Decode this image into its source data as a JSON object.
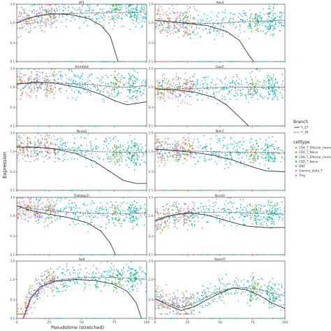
{
  "figure": {
    "xlabel": "Pseudotime (stretched)",
    "ylabel": "Expression",
    "legend_position": "right",
    "legend_branch_title": "Branch",
    "legend_celltype_title": "celltype"
  },
  "chart_data": {
    "type": "scatter",
    "layout": "faceted 5x2",
    "xlim": [
      0,
      100
    ],
    "x_ticks": [
      "0",
      "25",
      "50",
      "75",
      "100"
    ],
    "y_scale": "log10",
    "ylim": [
      0.1,
      3
    ],
    "y_ticks": [
      {
        "value": 0.1,
        "label": "0.1"
      },
      {
        "value": 0.3,
        "label": "0.3"
      },
      {
        "value": 1,
        "label": "1.0"
      },
      {
        "value": 3,
        "label": "3.0"
      }
    ],
    "branches": [
      {
        "name": "Y_27",
        "line": "solid",
        "color": "#333333"
      },
      {
        "name": "Y_39",
        "line": "dotted",
        "color": "#333333"
      }
    ],
    "celltypes": [
      {
        "name": "CD4_T_Effector_memory",
        "color": "#F8766D"
      },
      {
        "name": "CD4_T_Naive",
        "color": "#B79F00"
      },
      {
        "name": "CD8_T_Effector_memory",
        "color": "#00BA38"
      },
      {
        "name": "CD8_T_Naive",
        "color": "#00BFC4"
      },
      {
        "name": "DNT",
        "color": "#619CFF"
      },
      {
        "name": "Gamma_delta_T",
        "color": "#F564E3"
      },
      {
        "name": "Treg",
        "color": "#E76BF3"
      }
    ],
    "panels": [
      {
        "gene": "Jtf1",
        "trend_Y_27": [
          [
            0,
            1.0
          ],
          [
            10,
            1.35
          ],
          [
            25,
            1.7
          ],
          [
            40,
            1.65
          ],
          [
            55,
            1.3
          ],
          [
            65,
            0.85
          ],
          [
            72,
            0.45
          ],
          [
            78,
            0.1
          ]
        ],
        "trend_Y_39": [
          [
            0,
            1.0
          ],
          [
            15,
            1.5
          ],
          [
            30,
            1.7
          ],
          [
            50,
            1.75
          ],
          [
            70,
            1.8
          ],
          [
            85,
            1.85
          ],
          [
            100,
            1.9
          ]
        ]
      },
      {
        "gene": "Aes3",
        "trend_Y_27": [
          [
            0,
            1.15
          ],
          [
            20,
            1.0
          ],
          [
            40,
            0.85
          ],
          [
            55,
            0.6
          ],
          [
            65,
            0.35
          ],
          [
            72,
            0.15
          ],
          [
            76,
            0.1
          ]
        ],
        "trend_Y_39": [
          [
            0,
            1.15
          ],
          [
            20,
            1.0
          ],
          [
            45,
            0.95
          ],
          [
            65,
            1.05
          ],
          [
            85,
            1.1
          ],
          [
            100,
            1.15
          ]
        ]
      },
      {
        "gene": "Arhh6A4",
        "trend_Y_27": [
          [
            0,
            1.2
          ],
          [
            15,
            1.35
          ],
          [
            30,
            1.25
          ],
          [
            50,
            0.95
          ],
          [
            65,
            0.65
          ],
          [
            75,
            0.45
          ],
          [
            85,
            0.35
          ],
          [
            100,
            0.42
          ]
        ],
        "trend_Y_39": [
          [
            0,
            1.2
          ],
          [
            20,
            1.3
          ],
          [
            40,
            1.25
          ],
          [
            60,
            1.15
          ],
          [
            75,
            1.0
          ],
          [
            88,
            1.0
          ],
          [
            100,
            1.1
          ]
        ]
      },
      {
        "gene": "Gas5",
        "trend_Y_27": [
          [
            0,
            0.9
          ],
          [
            15,
            0.85
          ],
          [
            30,
            0.75
          ],
          [
            45,
            0.55
          ],
          [
            55,
            0.35
          ],
          [
            65,
            0.17
          ],
          [
            72,
            0.1
          ]
        ],
        "trend_Y_39": [
          [
            0,
            0.9
          ],
          [
            20,
            0.9
          ],
          [
            40,
            0.95
          ],
          [
            60,
            1.0
          ],
          [
            80,
            1.0
          ],
          [
            100,
            1.0
          ]
        ]
      },
      {
        "gene": "Ncoa2",
        "trend_Y_27": [
          [
            0,
            1.3
          ],
          [
            15,
            1.3
          ],
          [
            30,
            1.15
          ],
          [
            45,
            0.9
          ],
          [
            60,
            0.55
          ],
          [
            72,
            0.3
          ],
          [
            82,
            0.18
          ],
          [
            92,
            0.15
          ],
          [
            100,
            0.15
          ]
        ],
        "trend_Y_39": [
          [
            0,
            1.3
          ],
          [
            20,
            1.25
          ],
          [
            40,
            1.1
          ],
          [
            60,
            1.0
          ],
          [
            80,
            0.95
          ],
          [
            100,
            0.95
          ]
        ]
      },
      {
        "gene": "Nsh7",
        "trend_Y_27": [
          [
            0,
            1.15
          ],
          [
            15,
            1.05
          ],
          [
            30,
            0.95
          ],
          [
            45,
            0.8
          ],
          [
            60,
            0.6
          ],
          [
            75,
            0.4
          ],
          [
            85,
            0.32
          ],
          [
            100,
            0.3
          ]
        ],
        "trend_Y_39": [
          [
            0,
            1.15
          ],
          [
            20,
            1.05
          ],
          [
            40,
            1.0
          ],
          [
            60,
            0.95
          ],
          [
            80,
            0.95
          ],
          [
            100,
            0.9
          ]
        ]
      },
      {
        "gene": "Rabgap1l",
        "trend_Y_27": [
          [
            0,
            1.8
          ],
          [
            10,
            1.4
          ],
          [
            25,
            1.1
          ],
          [
            40,
            0.9
          ],
          [
            55,
            0.65
          ],
          [
            65,
            0.4
          ],
          [
            72,
            0.2
          ],
          [
            76,
            0.1
          ]
        ],
        "trend_Y_39": [
          [
            0,
            1.8
          ],
          [
            15,
            1.5
          ],
          [
            30,
            1.3
          ],
          [
            50,
            1.2
          ],
          [
            70,
            1.15
          ],
          [
            85,
            1.15
          ],
          [
            100,
            1.2
          ]
        ]
      },
      {
        "gene": "Bcsd3",
        "trend_Y_27": [
          [
            0,
            0.75
          ],
          [
            10,
            1.0
          ],
          [
            25,
            1.2
          ],
          [
            40,
            1.05
          ],
          [
            55,
            0.75
          ],
          [
            70,
            0.55
          ],
          [
            85,
            0.5
          ],
          [
            100,
            0.5
          ]
        ],
        "trend_Y_39": [
          [
            0,
            0.75
          ],
          [
            15,
            1.05
          ],
          [
            30,
            1.2
          ],
          [
            50,
            1.25
          ],
          [
            70,
            1.2
          ],
          [
            85,
            1.15
          ],
          [
            100,
            1.1
          ]
        ]
      },
      {
        "gene": "Sell",
        "trend_Y_27": [
          [
            5,
            0.1
          ],
          [
            10,
            0.3
          ],
          [
            18,
            0.65
          ],
          [
            30,
            0.9
          ],
          [
            45,
            1.0
          ],
          [
            60,
            0.95
          ],
          [
            75,
            0.75
          ],
          [
            85,
            0.5
          ],
          [
            92,
            0.25
          ],
          [
            96,
            0.1
          ]
        ],
        "trend_Y_39": [
          [
            5,
            0.1
          ],
          [
            12,
            0.4
          ],
          [
            25,
            0.9
          ],
          [
            45,
            1.1
          ],
          [
            65,
            1.15
          ],
          [
            85,
            1.1
          ],
          [
            100,
            1.0
          ]
        ]
      },
      {
        "gene": "Slamf7",
        "trend_Y_27": [
          [
            0,
            0.32
          ],
          [
            10,
            0.22
          ],
          [
            20,
            0.16
          ],
          [
            30,
            0.2
          ],
          [
            40,
            0.3
          ],
          [
            50,
            0.45
          ],
          [
            60,
            0.6
          ],
          [
            70,
            0.55
          ],
          [
            80,
            0.4
          ],
          [
            90,
            0.25
          ],
          [
            100,
            0.18
          ]
        ],
        "trend_Y_39": [
          [
            0,
            0.32
          ],
          [
            10,
            0.24
          ],
          [
            20,
            0.19
          ],
          [
            30,
            0.24
          ],
          [
            40,
            0.36
          ],
          [
            50,
            0.5
          ],
          [
            60,
            0.62
          ],
          [
            70,
            0.62
          ],
          [
            80,
            0.55
          ],
          [
            90,
            0.45
          ],
          [
            100,
            0.38
          ]
        ]
      }
    ]
  }
}
